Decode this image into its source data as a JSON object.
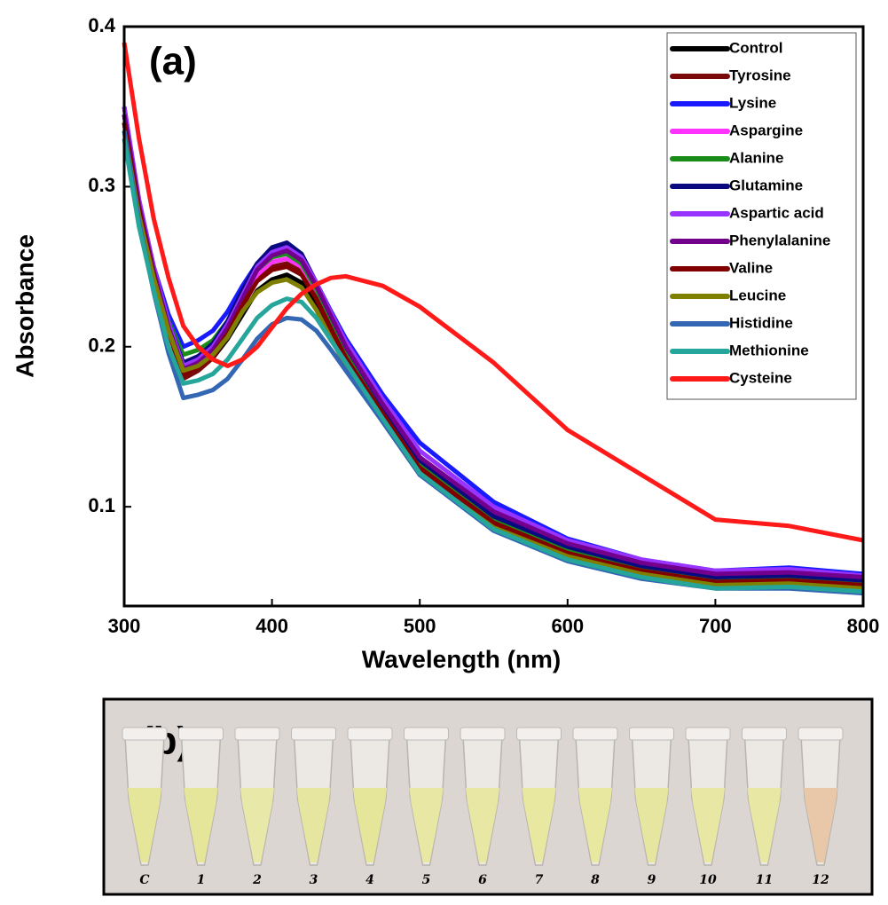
{
  "chart_data": {
    "type": "line",
    "annotation": "(a)",
    "x_label": "Wavelength (nm)",
    "y_label": "Absorbance",
    "x": [
      300,
      310,
      320,
      330,
      340,
      350,
      360,
      370,
      380,
      390,
      400,
      410,
      420,
      430,
      440,
      450,
      475,
      500,
      550,
      600,
      650,
      700,
      750,
      800
    ],
    "xlim": [
      300,
      800
    ],
    "xticks": [
      300,
      400,
      500,
      600,
      700,
      800
    ],
    "ylim": [
      0.038,
      0.4
    ],
    "yticks": [
      0.1,
      0.2,
      0.3,
      0.4
    ],
    "grid": false,
    "legend": "upper right",
    "series": [
      {
        "name": "Control",
        "color": "#000000",
        "values": [
          0.35,
          0.29,
          0.245,
          0.21,
          0.183,
          0.186,
          0.193,
          0.205,
          0.22,
          0.235,
          0.242,
          0.245,
          0.24,
          0.225,
          0.207,
          0.19,
          0.155,
          0.12,
          0.088,
          0.07,
          0.06,
          0.054,
          0.055,
          0.052
        ]
      },
      {
        "name": "Tyrosine",
        "color": "#7a0a0a",
        "values": [
          0.34,
          0.285,
          0.245,
          0.21,
          0.18,
          0.185,
          0.193,
          0.207,
          0.225,
          0.242,
          0.25,
          0.252,
          0.247,
          0.232,
          0.213,
          0.195,
          0.16,
          0.127,
          0.092,
          0.073,
          0.062,
          0.055,
          0.056,
          0.053
        ]
      },
      {
        "name": "Lysine",
        "color": "#1a1aff",
        "values": [
          0.345,
          0.29,
          0.25,
          0.22,
          0.2,
          0.204,
          0.21,
          0.222,
          0.238,
          0.252,
          0.26,
          0.262,
          0.256,
          0.24,
          0.222,
          0.205,
          0.17,
          0.14,
          0.103,
          0.08,
          0.067,
          0.06,
          0.062,
          0.058
        ]
      },
      {
        "name": "Aspargine",
        "color": "#ff33ff",
        "values": [
          0.34,
          0.285,
          0.245,
          0.213,
          0.19,
          0.193,
          0.2,
          0.213,
          0.23,
          0.245,
          0.253,
          0.255,
          0.25,
          0.235,
          0.216,
          0.198,
          0.163,
          0.13,
          0.096,
          0.076,
          0.064,
          0.057,
          0.058,
          0.055
        ]
      },
      {
        "name": "Alanine",
        "color": "#1a8c1a",
        "values": [
          0.34,
          0.285,
          0.247,
          0.216,
          0.195,
          0.198,
          0.204,
          0.216,
          0.233,
          0.248,
          0.256,
          0.258,
          0.252,
          0.236,
          0.217,
          0.198,
          0.162,
          0.128,
          0.093,
          0.074,
          0.062,
          0.055,
          0.056,
          0.053
        ]
      },
      {
        "name": "Glutamine",
        "color": "#0a0a80",
        "values": [
          0.345,
          0.29,
          0.248,
          0.215,
          0.19,
          0.194,
          0.202,
          0.216,
          0.235,
          0.252,
          0.262,
          0.265,
          0.258,
          0.24,
          0.22,
          0.2,
          0.163,
          0.129,
          0.094,
          0.075,
          0.063,
          0.056,
          0.057,
          0.054
        ]
      },
      {
        "name": "Aspartic acid",
        "color": "#9933ff",
        "values": [
          0.35,
          0.292,
          0.25,
          0.215,
          0.188,
          0.192,
          0.2,
          0.214,
          0.232,
          0.25,
          0.259,
          0.262,
          0.256,
          0.24,
          0.221,
          0.203,
          0.167,
          0.135,
          0.1,
          0.079,
          0.067,
          0.06,
          0.061,
          0.057
        ]
      },
      {
        "name": "Phenylalanine",
        "color": "#73008c",
        "values": [
          0.345,
          0.288,
          0.247,
          0.212,
          0.186,
          0.19,
          0.198,
          0.212,
          0.23,
          0.248,
          0.257,
          0.26,
          0.254,
          0.238,
          0.219,
          0.2,
          0.164,
          0.131,
          0.097,
          0.077,
          0.065,
          0.058,
          0.059,
          0.056
        ]
      },
      {
        "name": "Valine",
        "color": "#800000",
        "values": [
          0.34,
          0.285,
          0.244,
          0.209,
          0.183,
          0.187,
          0.195,
          0.208,
          0.226,
          0.241,
          0.248,
          0.25,
          0.245,
          0.23,
          0.211,
          0.193,
          0.158,
          0.124,
          0.09,
          0.071,
          0.06,
          0.053,
          0.054,
          0.051
        ]
      },
      {
        "name": "Leucine",
        "color": "#808000",
        "values": [
          0.335,
          0.282,
          0.243,
          0.21,
          0.185,
          0.188,
          0.195,
          0.206,
          0.222,
          0.234,
          0.24,
          0.242,
          0.237,
          0.223,
          0.205,
          0.188,
          0.153,
          0.12,
          0.087,
          0.069,
          0.058,
          0.051,
          0.052,
          0.049
        ]
      },
      {
        "name": "Histidine",
        "color": "#3366b3",
        "values": [
          0.335,
          0.278,
          0.234,
          0.196,
          0.168,
          0.17,
          0.173,
          0.18,
          0.192,
          0.205,
          0.214,
          0.218,
          0.217,
          0.21,
          0.198,
          0.185,
          0.153,
          0.12,
          0.085,
          0.066,
          0.055,
          0.049,
          0.049,
          0.046
        ]
      },
      {
        "name": "Methionine",
        "color": "#26a69a",
        "values": [
          0.33,
          0.275,
          0.235,
          0.2,
          0.177,
          0.179,
          0.183,
          0.192,
          0.205,
          0.218,
          0.226,
          0.23,
          0.228,
          0.218,
          0.204,
          0.19,
          0.155,
          0.121,
          0.086,
          0.067,
          0.056,
          0.049,
          0.05,
          0.047
        ]
      },
      {
        "name": "Cysteine",
        "color": "#ff1a1a",
        "values": [
          0.39,
          0.33,
          0.28,
          0.243,
          0.213,
          0.2,
          0.192,
          0.188,
          0.192,
          0.2,
          0.212,
          0.224,
          0.233,
          0.239,
          0.243,
          0.244,
          0.238,
          0.225,
          0.19,
          0.148,
          0.12,
          0.092,
          0.088,
          0.079
        ]
      }
    ]
  },
  "photo": {
    "label": "(b)",
    "tube_labels": [
      "C",
      "1",
      "2",
      "3",
      "4",
      "5",
      "6",
      "7",
      "8",
      "9",
      "10",
      "11",
      "12"
    ],
    "tube_colors": [
      "#e6e69a",
      "#e6e69a",
      "#e8e8a8",
      "#e6e6a0",
      "#e6e69a",
      "#e8e8a4",
      "#e8e8a4",
      "#e8e8a0",
      "#e8e8a0",
      "#e6e6a0",
      "#e8e8a4",
      "#e8e8a4",
      "#e8c8a8"
    ]
  }
}
